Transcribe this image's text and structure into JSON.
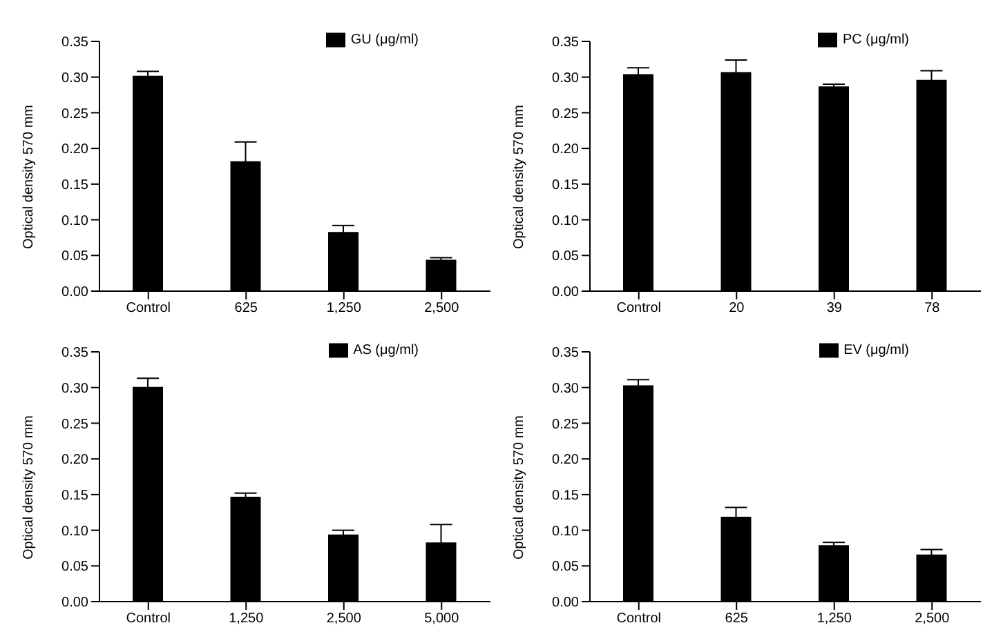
{
  "chart_data": [
    {
      "type": "bar",
      "categories": [
        "Control",
        "625",
        "1,250",
        "2,500"
      ],
      "series": [
        {
          "name": "GU (μg/ml)",
          "color": "#000000",
          "values": [
            0.302,
            0.182,
            0.083,
            0.044
          ],
          "errors": [
            0.006,
            0.027,
            0.009,
            0.003
          ]
        }
      ],
      "ylabel": "Optical density 570 mm",
      "ylim": [
        0,
        0.35
      ],
      "yticks": [
        {
          "value": 0,
          "label": "0.00"
        },
        {
          "value": 0.05,
          "label": "0.05"
        },
        {
          "value": 0.1,
          "label": "0.10"
        },
        {
          "value": 0.15,
          "label": "0.15"
        },
        {
          "value": 0.2,
          "label": "0.20"
        },
        {
          "value": 0.25,
          "label": "0.25"
        },
        {
          "value": 0.3,
          "label": "0.30"
        },
        {
          "value": 0.35,
          "label": "0.35"
        }
      ],
      "legend": "top right"
    },
    {
      "type": "bar",
      "categories": [
        "Control",
        "20",
        "39",
        "78"
      ],
      "series": [
        {
          "name": "PC (μg/ml)",
          "color": "#000000",
          "values": [
            0.304,
            0.307,
            0.287,
            0.296
          ],
          "errors": [
            0.009,
            0.017,
            0.003,
            0.013
          ]
        }
      ],
      "ylabel": "Optical density 570 mm",
      "ylim": [
        0,
        0.35
      ],
      "yticks": [
        {
          "value": 0,
          "label": "0.00"
        },
        {
          "value": 0.05,
          "label": "0.05"
        },
        {
          "value": 0.1,
          "label": "0.10"
        },
        {
          "value": 0.15,
          "label": "0.15"
        },
        {
          "value": 0.2,
          "label": "0.20"
        },
        {
          "value": 0.25,
          "label": "0.25"
        },
        {
          "value": 0.3,
          "label": "0.30"
        },
        {
          "value": 0.35,
          "label": "0.35"
        }
      ],
      "legend": "top right"
    },
    {
      "type": "bar",
      "categories": [
        "Control",
        "1,250",
        "2,500",
        "5,000"
      ],
      "series": [
        {
          "name": "AS (μg/ml)",
          "color": "#000000",
          "values": [
            0.301,
            0.147,
            0.094,
            0.083
          ],
          "errors": [
            0.012,
            0.005,
            0.006,
            0.025
          ]
        }
      ],
      "ylabel": "Optical density 570 mm",
      "ylim": [
        0,
        0.35
      ],
      "yticks": [
        {
          "value": 0,
          "label": "0.00"
        },
        {
          "value": 0.05,
          "label": "0.05"
        },
        {
          "value": 0.1,
          "label": "0.10"
        },
        {
          "value": 0.15,
          "label": "0.15"
        },
        {
          "value": 0.2,
          "label": "0.20"
        },
        {
          "value": 0.25,
          "label": "0.25"
        },
        {
          "value": 0.3,
          "label": "0.30"
        },
        {
          "value": 0.35,
          "label": "0.35"
        }
      ],
      "legend": "top right"
    },
    {
      "type": "bar",
      "categories": [
        "Control",
        "625",
        "1,250",
        "2,500"
      ],
      "series": [
        {
          "name": "EV (μg/ml)",
          "color": "#000000",
          "values": [
            0.303,
            0.119,
            0.079,
            0.066
          ],
          "errors": [
            0.008,
            0.013,
            0.004,
            0.007
          ]
        }
      ],
      "ylabel": "Optical density 570 mm",
      "ylim": [
        0,
        0.35
      ],
      "yticks": [
        {
          "value": 0,
          "label": "0.00"
        },
        {
          "value": 0.05,
          "label": "0.05"
        },
        {
          "value": 0.1,
          "label": "0.10"
        },
        {
          "value": 0.15,
          "label": "0.15"
        },
        {
          "value": 0.2,
          "label": "0.20"
        },
        {
          "value": 0.25,
          "label": "0.25"
        },
        {
          "value": 0.3,
          "label": "0.30"
        },
        {
          "value": 0.35,
          "label": "0.35"
        }
      ],
      "legend": "top right"
    }
  ]
}
